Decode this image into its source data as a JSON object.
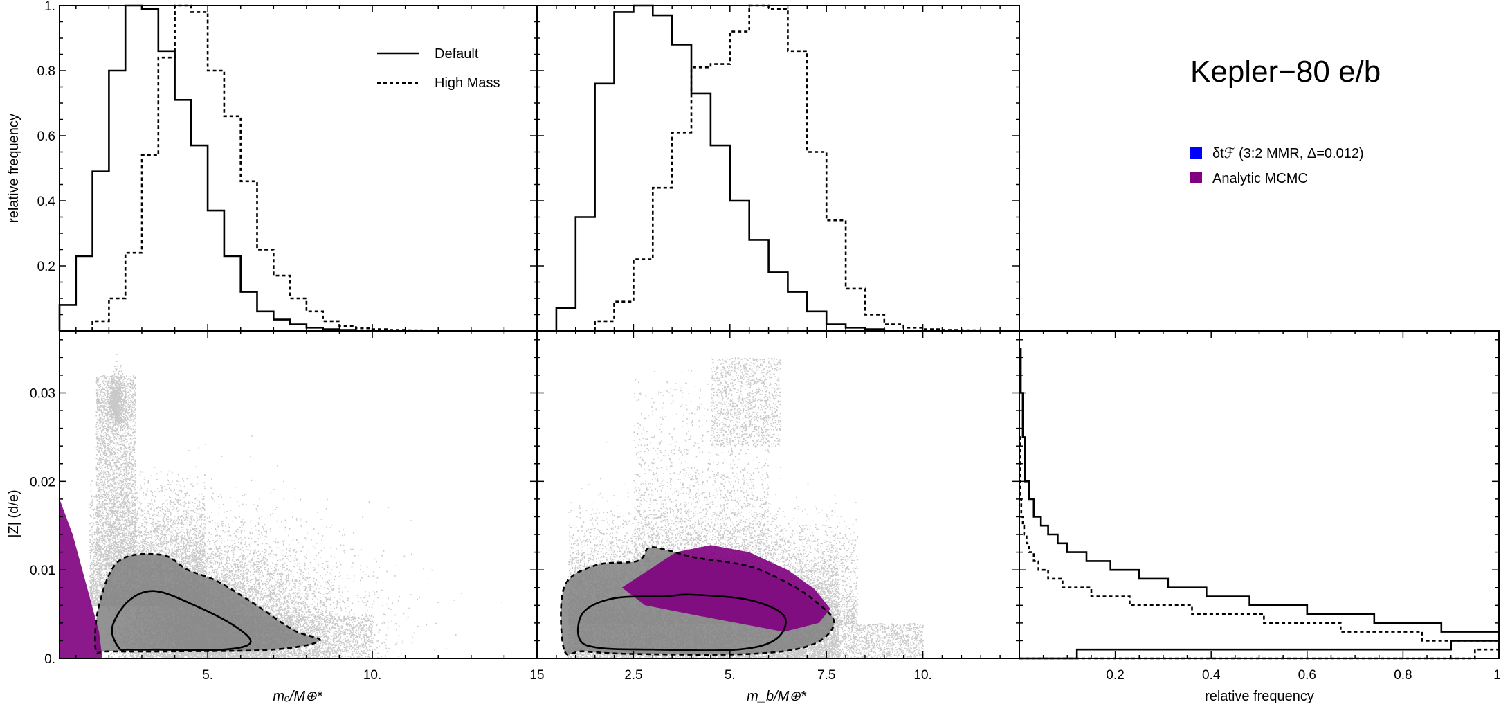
{
  "title": "Kepler−80 e/b",
  "legend_lines": [
    {
      "label": "Default",
      "style": "solid"
    },
    {
      "label": "High Mass",
      "style": "dashed"
    }
  ],
  "legend_colors": [
    {
      "label": "δtℱ (3:2 MMR, Δ=0.012)",
      "color": "#0000ff"
    },
    {
      "label": "Analytic MCMC",
      "color": "#800080"
    }
  ],
  "axis_labels": {
    "hist_y": "relative frequency",
    "scatter_y": "|Z| (d/e)",
    "x_left": "mₑ/M⊕*",
    "x_mid": "m_b/M⊕*",
    "x_right": "relative frequency"
  },
  "colors": {
    "points": "#9a9a9a",
    "core": "#808080",
    "mcmc": "#800080",
    "blue": "#0000ff"
  },
  "chart_data": [
    {
      "type": "histogram",
      "panel": "top-left",
      "xlim": [
        0.5,
        15
      ],
      "ylim": [
        0,
        1
      ],
      "yticks": [
        "0.2",
        "0.4",
        "0.6",
        "0.8",
        "1."
      ],
      "xlabel": "",
      "ylabel": "relative frequency",
      "series": [
        {
          "name": "Default",
          "style": "solid",
          "edges": [
            0.5,
            1,
            1.5,
            2,
            2.5,
            3,
            3.5,
            4,
            4.5,
            5,
            5.5,
            6,
            6.5,
            7,
            7.5,
            8,
            8.5,
            9,
            9.5,
            10,
            10.5
          ],
          "values": [
            0.08,
            0.23,
            0.49,
            0.8,
            1.0,
            0.99,
            0.86,
            0.71,
            0.57,
            0.37,
            0.23,
            0.12,
            0.06,
            0.035,
            0.02,
            0.01,
            0.005,
            0.003,
            0.001,
            0
          ]
        },
        {
          "name": "High Mass",
          "style": "dashed",
          "edges": [
            1.5,
            2,
            2.5,
            3,
            3.5,
            4,
            4.5,
            5,
            5.5,
            6,
            6.5,
            7,
            7.5,
            8,
            8.5,
            9,
            9.5,
            10,
            10.5,
            11,
            11.5,
            12,
            12.5,
            13,
            13.5,
            14
          ],
          "values": [
            0.03,
            0.1,
            0.24,
            0.54,
            0.84,
            1.0,
            0.98,
            0.8,
            0.66,
            0.46,
            0.25,
            0.17,
            0.1,
            0.06,
            0.03,
            0.015,
            0.008,
            0.005,
            0.003,
            0.002,
            0.001,
            0.001,
            0.0005,
            0.0003,
            0
          ]
        }
      ]
    },
    {
      "type": "histogram",
      "panel": "top-middle",
      "xlim": [
        0,
        12.5
      ],
      "ylim": [
        0,
        1
      ],
      "series": [
        {
          "name": "Default",
          "style": "solid",
          "edges": [
            0.5,
            1,
            1.5,
            2,
            2.5,
            3,
            3.5,
            4,
            4.5,
            5,
            5.5,
            6,
            6.5,
            7,
            7.5,
            8,
            8.5,
            9
          ],
          "values": [
            0.07,
            0.35,
            0.76,
            0.98,
            1.0,
            0.97,
            0.88,
            0.73,
            0.57,
            0.4,
            0.28,
            0.18,
            0.12,
            0.06,
            0.02,
            0.01,
            0.005
          ]
        },
        {
          "name": "High Mass",
          "style": "dashed",
          "edges": [
            1.5,
            2,
            2.5,
            3,
            3.5,
            4,
            4.5,
            5,
            5.5,
            6,
            6.5,
            7,
            7.5,
            8,
            8.5,
            9,
            9.5,
            10,
            10.5,
            11,
            11.5,
            12,
            12.5
          ],
          "values": [
            0.03,
            0.09,
            0.22,
            0.44,
            0.61,
            0.81,
            0.82,
            0.92,
            1.0,
            0.99,
            0.86,
            0.55,
            0.34,
            0.13,
            0.05,
            0.02,
            0.01,
            0.005,
            0.003,
            0.002,
            0.001,
            0
          ]
        }
      ]
    },
    {
      "type": "scatter",
      "panel": "bottom-left",
      "xlim": [
        0.5,
        15
      ],
      "ylim": [
        0,
        0.037
      ],
      "xticks": [
        "5.",
        "10.",
        "15"
      ],
      "yticks": [
        "0.",
        "0.01",
        "0.02",
        "0.03"
      ],
      "xlabel": "mₑ/M⊕*",
      "ylabel": "|Z| (d/e)",
      "regions": [
        {
          "name": "Analytic MCMC",
          "points": [
            [
              0.5,
              0.018
            ],
            [
              0.9,
              0.014
            ],
            [
              1.3,
              0.0085
            ],
            [
              1.7,
              0.003
            ],
            [
              1.8,
              0.0
            ],
            [
              0.5,
              0.0
            ]
          ]
        },
        {
          "name": "Default 1-sigma contour",
          "points": [
            [
              2.3,
              0.0012
            ],
            [
              2.1,
              0.0035
            ],
            [
              2.6,
              0.0065
            ],
            [
              3.4,
              0.0076
            ],
            [
              4.6,
              0.006
            ],
            [
              5.8,
              0.0037
            ],
            [
              6.3,
              0.0018
            ],
            [
              5.5,
              0.001
            ],
            [
              3.5,
              0.001
            ],
            [
              2.6,
              0.001
            ]
          ]
        },
        {
          "name": "Default 2-sigma contour",
          "points": [
            [
              1.6,
              0.001
            ],
            [
              1.7,
              0.006
            ],
            [
              2.3,
              0.011
            ],
            [
              3.6,
              0.0117
            ],
            [
              4.4,
              0.01
            ],
            [
              5.3,
              0.0087
            ],
            [
              6.4,
              0.0062
            ],
            [
              7.6,
              0.0032
            ],
            [
              8.4,
              0.002
            ],
            [
              7.0,
              0.001
            ],
            [
              4.0,
              0.0008
            ],
            [
              2.0,
              0.0008
            ]
          ]
        }
      ]
    },
    {
      "type": "scatter",
      "panel": "bottom-middle",
      "xlim": [
        0,
        12.5
      ],
      "ylim": [
        0,
        0.037
      ],
      "xticks": [
        "2.5",
        "5.",
        "7.5",
        "10."
      ],
      "xlabel": "m_b/M⊕*",
      "regions": [
        {
          "name": "Analytic MCMC",
          "points": [
            [
              2.2,
              0.008
            ],
            [
              3.6,
              0.012
            ],
            [
              4.5,
              0.0128
            ],
            [
              5.5,
              0.012
            ],
            [
              6.5,
              0.01
            ],
            [
              7.2,
              0.0078
            ],
            [
              7.6,
              0.0056
            ],
            [
              7.3,
              0.004
            ],
            [
              6.4,
              0.003
            ],
            [
              4.2,
              0.0048
            ],
            [
              2.8,
              0.006
            ]
          ]
        },
        {
          "name": "Default 1-sigma contour",
          "points": [
            [
              1.1,
              0.0022
            ],
            [
              1.2,
              0.0052
            ],
            [
              2.0,
              0.0068
            ],
            [
              3.3,
              0.007
            ],
            [
              4.0,
              0.0072
            ],
            [
              5.5,
              0.0066
            ],
            [
              6.4,
              0.0048
            ],
            [
              6.2,
              0.0022
            ],
            [
              5.2,
              0.001
            ],
            [
              3.0,
              0.001
            ],
            [
              1.6,
              0.0012
            ]
          ]
        },
        {
          "name": "Default 2-sigma contour",
          "points": [
            [
              0.7,
              0.001
            ],
            [
              0.7,
              0.008
            ],
            [
              1.5,
              0.0105
            ],
            [
              2.6,
              0.011
            ],
            [
              2.9,
              0.0125
            ],
            [
              3.4,
              0.0122
            ],
            [
              4.1,
              0.0114
            ],
            [
              5.5,
              0.0104
            ],
            [
              6.5,
              0.0085
            ],
            [
              7.2,
              0.0065
            ],
            [
              7.7,
              0.004
            ],
            [
              7.1,
              0.0015
            ],
            [
              5.5,
              0.0005
            ],
            [
              2.5,
              0.0005
            ],
            [
              1.2,
              0.0008
            ]
          ]
        }
      ]
    },
    {
      "type": "histogram",
      "panel": "bottom-right",
      "orientation": "horizontal",
      "xlim": [
        0,
        1
      ],
      "ylim": [
        0,
        0.037
      ],
      "xticks": [
        "0.2",
        "0.4",
        "0.6",
        "0.8",
        "1."
      ],
      "xlabel": "relative frequency",
      "series": [
        {
          "name": "Default",
          "style": "solid",
          "edges": [
            0,
            0.001,
            0.002,
            0.003,
            0.004,
            0.005,
            0.006,
            0.007,
            0.008,
            0.009,
            0.01,
            0.011,
            0.012,
            0.013,
            0.014,
            0.015,
            0.016,
            0.018,
            0.02,
            0.025,
            0.03,
            0.035
          ],
          "values": [
            0.12,
            0.9,
            1.0,
            0.88,
            0.74,
            0.6,
            0.48,
            0.39,
            0.31,
            0.25,
            0.19,
            0.14,
            0.1,
            0.08,
            0.06,
            0.045,
            0.03,
            0.02,
            0.012,
            0.007,
            0.003
          ]
        },
        {
          "name": "High Mass",
          "style": "dashed",
          "edges": [
            0,
            0.001,
            0.002,
            0.003,
            0.004,
            0.005,
            0.006,
            0.007,
            0.008,
            0.009,
            0.01,
            0.011,
            0.012,
            0.013,
            0.014,
            0.015,
            0.016,
            0.018,
            0.02,
            0.025
          ],
          "values": [
            0.95,
            1.0,
            0.84,
            0.67,
            0.51,
            0.36,
            0.23,
            0.15,
            0.09,
            0.06,
            0.04,
            0.03,
            0.02,
            0.015,
            0.01,
            0.007,
            0.004,
            0.002,
            0.001
          ]
        }
      ]
    }
  ]
}
